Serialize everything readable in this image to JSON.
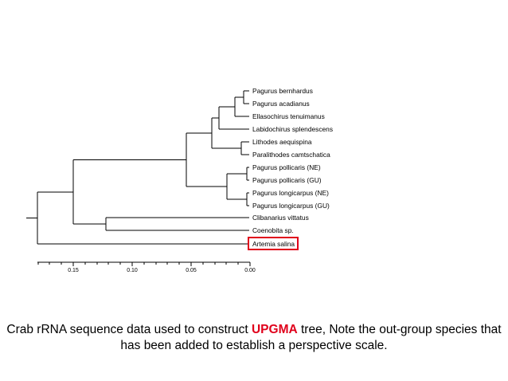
{
  "tree": {
    "leaves": [
      "Pagurus bernhardus",
      "Pagurus acadianus",
      "Ellasochirus tenuimanus",
      "Labidochirus splendescens",
      "Lithodes aequispina",
      "Paralithodes camtschatica",
      "Pagurus pollicaris (NE)",
      "Pagurus pollicaris (GU)",
      "Pagurus longicarpus (NE)",
      "Pagurus longicarpus (GU)",
      "Clibanarius vittatus",
      "Coenobita sp.",
      "Artemia salina"
    ],
    "highlighted_leaf": "Artemia salina",
    "highlight_color": "#e0001b",
    "axis_ticks": [
      "0.15",
      "0.10",
      "0.05",
      "0.00"
    ],
    "axis_tick_values": [
      0.15,
      0.1,
      0.05,
      0.0
    ]
  },
  "caption": {
    "before": "Crab rRNA sequence data used to construct ",
    "highlight": "UPGMA",
    "after": " tree, Note the out-group species that has been added to establish a perspective scale."
  },
  "colors": {
    "accent": "#e0001b"
  }
}
